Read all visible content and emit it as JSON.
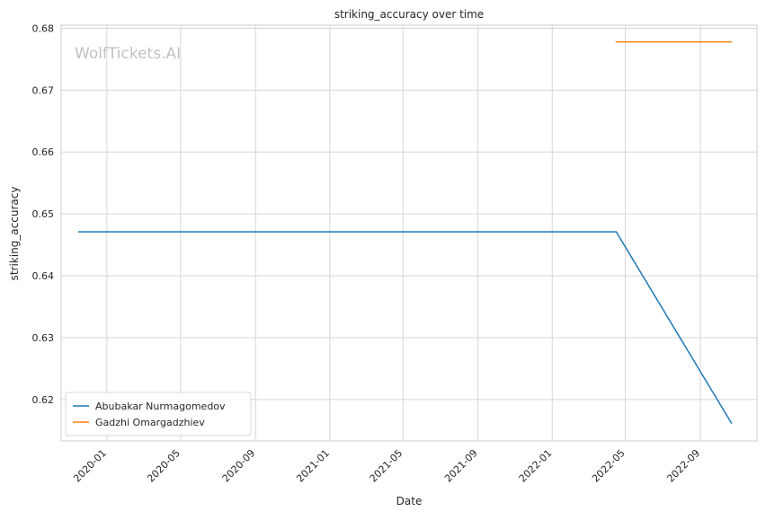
{
  "watermark": "WolfTickets.AI",
  "chart_data": {
    "type": "line",
    "title": "striking_accuracy over time",
    "xlabel": "Date",
    "ylabel": "striking_accuracy",
    "x_axis_type": "date",
    "xlim": [
      "2019-10-18",
      "2022-12-03"
    ],
    "ylim": [
      0.6133,
      0.6805
    ],
    "x_ticks": [
      "2020-01",
      "2020-05",
      "2020-09",
      "2021-01",
      "2021-05",
      "2021-09",
      "2022-01",
      "2022-05",
      "2022-09"
    ],
    "y_ticks": [
      0.62,
      0.63,
      0.64,
      0.65,
      0.66,
      0.67,
      0.68
    ],
    "y_tick_labels": [
      "0.62",
      "0.63",
      "0.64",
      "0.65",
      "0.66",
      "0.67",
      "0.68"
    ],
    "grid": true,
    "legend_position": "lower-left",
    "series": [
      {
        "name": "Abubakar Nurmagomedov",
        "color": "#1f77b4",
        "points": [
          {
            "x": "2019-11-16",
            "y": 0.6471
          },
          {
            "x": "2022-04-16",
            "y": 0.6471
          },
          {
            "x": "2022-10-22",
            "y": 0.6162
          }
        ]
      },
      {
        "name": "Gadzhi Omargadzhiev",
        "color": "#ff7f0e",
        "points": [
          {
            "x": "2022-04-16",
            "y": 0.6778
          },
          {
            "x": "2022-10-22",
            "y": 0.6778
          }
        ]
      }
    ]
  }
}
